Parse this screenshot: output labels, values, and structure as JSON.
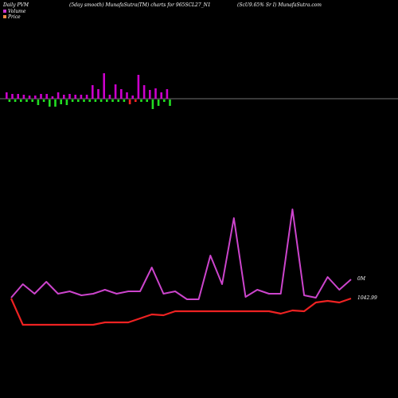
{
  "header": {
    "left": "Daily PVM",
    "center": "(5day smooth) MunafaSutra(TM) charts for 965SCL27_N1",
    "right": "(ScU9.65% Sr I) MunafaSutra.com"
  },
  "legend": {
    "volume_label": "Volume",
    "price_label": "Price",
    "volume_color": "#cc33cc",
    "price_color": "#ee3333"
  },
  "labels": {
    "volume_value": "0M",
    "price_value": "1042.99"
  },
  "colors": {
    "background": "#000000",
    "volume_up": "#cc00cc",
    "volume_down": "#22dd22",
    "volume_bad": "#ff2222",
    "baseline": "#999999",
    "volume_line": "#cc44cc",
    "price_line": "#ee2222"
  },
  "chart_data": {
    "type": "line",
    "volume_bars": [
      {
        "dir": "up",
        "value": 8
      },
      {
        "dir": "down",
        "value": 3
      },
      {
        "dir": "up",
        "value": 6
      },
      {
        "dir": "down",
        "value": 3
      },
      {
        "dir": "up",
        "value": 6
      },
      {
        "dir": "down",
        "value": 3
      },
      {
        "dir": "up",
        "value": 5
      },
      {
        "dir": "down",
        "value": 3
      },
      {
        "dir": "up",
        "value": 4
      },
      {
        "dir": "down",
        "value": 3
      },
      {
        "dir": "up",
        "value": 4
      },
      {
        "dir": "down",
        "value": 7
      },
      {
        "dir": "up",
        "value": 6
      },
      {
        "dir": "down",
        "value": 3
      },
      {
        "dir": "up",
        "value": 6
      },
      {
        "dir": "down",
        "value": 9
      },
      {
        "dir": "up",
        "value": 3
      },
      {
        "dir": "down",
        "value": 9
      },
      {
        "dir": "up",
        "value": 8
      },
      {
        "dir": "down",
        "value": 6
      },
      {
        "dir": "up",
        "value": 5
      },
      {
        "dir": "down",
        "value": 7
      },
      {
        "dir": "up",
        "value": 6
      },
      {
        "dir": "down",
        "value": 3
      },
      {
        "dir": "up",
        "value": 5
      },
      {
        "dir": "down",
        "value": 3
      },
      {
        "dir": "up",
        "value": 5
      },
      {
        "dir": "down",
        "value": 3
      },
      {
        "dir": "up",
        "value": 5
      },
      {
        "dir": "down",
        "value": 3
      },
      {
        "dir": "up",
        "value": 17
      },
      {
        "dir": "down",
        "value": 3
      },
      {
        "dir": "up",
        "value": 12
      },
      {
        "dir": "down",
        "value": 3
      },
      {
        "dir": "up",
        "value": 32
      },
      {
        "dir": "down",
        "value": 3
      },
      {
        "dir": "up",
        "value": 5
      },
      {
        "dir": "down",
        "value": 3
      },
      {
        "dir": "up",
        "value": 18
      },
      {
        "dir": "down",
        "value": 3
      },
      {
        "dir": "up",
        "value": 12
      },
      {
        "dir": "down",
        "value": 3
      },
      {
        "dir": "up",
        "value": 8
      },
      {
        "dir": "bad",
        "value": 6
      },
      {
        "dir": "up",
        "value": 4
      },
      {
        "dir": "bad",
        "value": 3
      },
      {
        "dir": "up",
        "value": 30
      },
      {
        "dir": "down",
        "value": 3
      },
      {
        "dir": "up",
        "value": 17
      },
      {
        "dir": "down",
        "value": 3
      },
      {
        "dir": "up",
        "value": 11
      },
      {
        "dir": "down",
        "value": 12
      },
      {
        "dir": "up",
        "value": 13
      },
      {
        "dir": "down",
        "value": 8
      },
      {
        "dir": "up",
        "value": 8
      },
      {
        "dir": "down",
        "value": 3
      },
      {
        "dir": "up",
        "value": 12
      },
      {
        "dir": "down",
        "value": 8
      }
    ],
    "volume_line": [
      374,
      357,
      369,
      354,
      369,
      366,
      371,
      369,
      364,
      369,
      366,
      366,
      336,
      369,
      366,
      376,
      376,
      321,
      357,
      274,
      373,
      364,
      369,
      369,
      263,
      371,
      374,
      348,
      364,
      351
    ],
    "price_line": [
      375,
      408,
      408,
      408,
      408,
      408,
      408,
      408,
      405,
      405,
      405,
      400,
      395,
      396,
      391,
      391,
      391,
      391,
      391,
      391,
      391,
      391,
      391,
      394,
      390,
      391,
      380,
      378,
      380,
      375
    ]
  }
}
